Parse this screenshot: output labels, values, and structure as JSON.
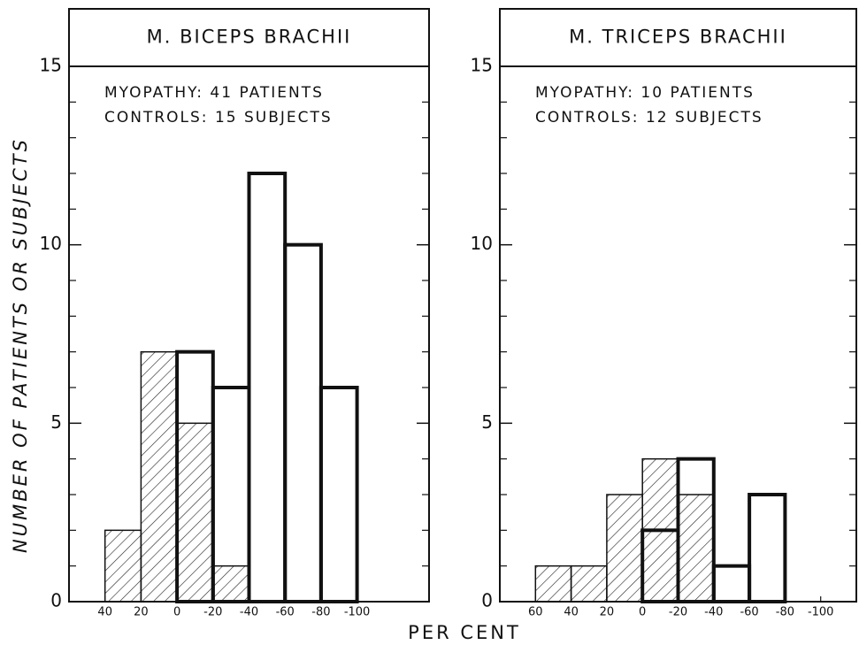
{
  "ylabel": "NUMBER OF PATIENTS OR SUBJECTS",
  "xlabel": "PER CENT",
  "chart_data": [
    {
      "type": "histogram",
      "title": "M. BICEPS BRACHII",
      "annotations": [
        "MYOPATHY: 41 PATIENTS",
        "CONTROLS: 15 SUBJECTS"
      ],
      "xlim": [
        60,
        -140
      ],
      "xticks": [
        40,
        20,
        0,
        -20,
        -40,
        -60,
        -80,
        -100
      ],
      "ylim": [
        0,
        15
      ],
      "yticks": [
        0,
        5,
        10,
        15
      ],
      "yminorticks": [
        1,
        2,
        3,
        4,
        6,
        7,
        8,
        9,
        11,
        12,
        13,
        14
      ],
      "series": [
        {
          "style": "hatched",
          "bins": [
            40,
            20,
            0,
            -20,
            -40
          ],
          "values": [
            2,
            7,
            5,
            1
          ]
        },
        {
          "style": "outline",
          "bins": [
            0,
            -20,
            -40,
            -60,
            -80,
            -100
          ],
          "values": [
            7,
            6,
            12,
            10,
            6
          ]
        }
      ]
    },
    {
      "type": "histogram",
      "title": "M. TRICEPS BRACHII",
      "annotations": [
        "MYOPATHY: 10 PATIENTS",
        "CONTROLS: 12 SUBJECTS"
      ],
      "xlim": [
        80,
        -120
      ],
      "xticks": [
        60,
        40,
        20,
        0,
        -20,
        -40,
        -60,
        -80,
        -100
      ],
      "ylim": [
        0,
        15
      ],
      "yticks": [
        0,
        5,
        10,
        15
      ],
      "yminorticks": [
        1,
        2,
        3,
        4,
        6,
        7,
        8,
        9,
        11,
        12,
        13,
        14
      ],
      "series": [
        {
          "style": "hatched",
          "bins": [
            60,
            40,
            20,
            0,
            -20,
            -40
          ],
          "values": [
            1,
            1,
            3,
            4,
            3
          ]
        },
        {
          "style": "outline",
          "bins": [
            0,
            -20,
            -40,
            -60,
            -80
          ],
          "values": [
            2,
            4,
            1,
            3
          ]
        }
      ]
    }
  ]
}
